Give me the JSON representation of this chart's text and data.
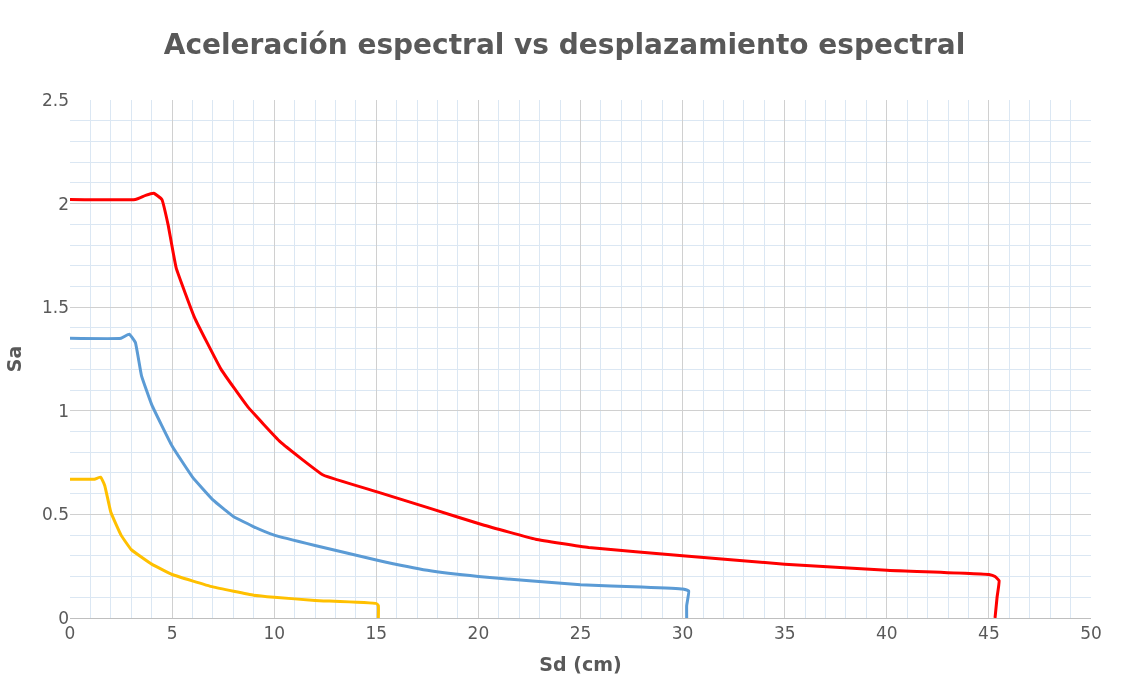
{
  "chart_data": {
    "type": "line",
    "title": "Aceleración espectral vs desplazamiento espectral",
    "xlabel": "Sd (cm)",
    "ylabel": "Sa",
    "xlim": [
      0,
      50
    ],
    "xticks": [
      0,
      5,
      10,
      15,
      20,
      25,
      30,
      35,
      40,
      45,
      50
    ],
    "ylim": [
      0,
      2.5
    ],
    "yticks": [
      0,
      0.5,
      1,
      1.5,
      2,
      2.5
    ],
    "grid": true,
    "marker": "none",
    "line_style": "solid",
    "series": [
      {
        "color": "#ff0000",
        "x": [
          0,
          3.2,
          3.7,
          4.1,
          4.5,
          4.8,
          5.2,
          6.1,
          7.4,
          8.7,
          10.3,
          12.4,
          15,
          17.6,
          20.2,
          22.8,
          25.4,
          30,
          35,
          40,
          45,
          45.3,
          45.5,
          45.4,
          45.3
        ],
        "values": [
          2.02,
          2.02,
          2.04,
          2.05,
          2.02,
          1.9,
          1.69,
          1.45,
          1.2,
          1.02,
          0.85,
          0.69,
          0.61,
          0.53,
          0.45,
          0.38,
          0.34,
          0.3,
          0.26,
          0.23,
          0.21,
          0.2,
          0.18,
          0.1,
          0
        ]
      },
      {
        "color": "#5b9bd5",
        "x": [
          0,
          2.5,
          2.9,
          3.2,
          3.5,
          4,
          5,
          6,
          7,
          8,
          9,
          10,
          12,
          15,
          17.5,
          20,
          25,
          28,
          30,
          30.3,
          30.2,
          30.2
        ],
        "values": [
          1.35,
          1.35,
          1.37,
          1.33,
          1.17,
          1.03,
          0.83,
          0.68,
          0.57,
          0.49,
          0.44,
          0.4,
          0.35,
          0.28,
          0.23,
          0.2,
          0.16,
          0.15,
          0.14,
          0.13,
          0.06,
          0
        ]
      },
      {
        "color": "#ffc000",
        "x": [
          0,
          1.2,
          1.5,
          1.7,
          2,
          2.5,
          3,
          4,
          5,
          7,
          9,
          10,
          12,
          15,
          15.1,
          15.1
        ],
        "values": [
          0.67,
          0.67,
          0.68,
          0.64,
          0.51,
          0.4,
          0.33,
          0.26,
          0.21,
          0.15,
          0.11,
          0.1,
          0.085,
          0.07,
          0.06,
          0
        ]
      }
    ]
  }
}
